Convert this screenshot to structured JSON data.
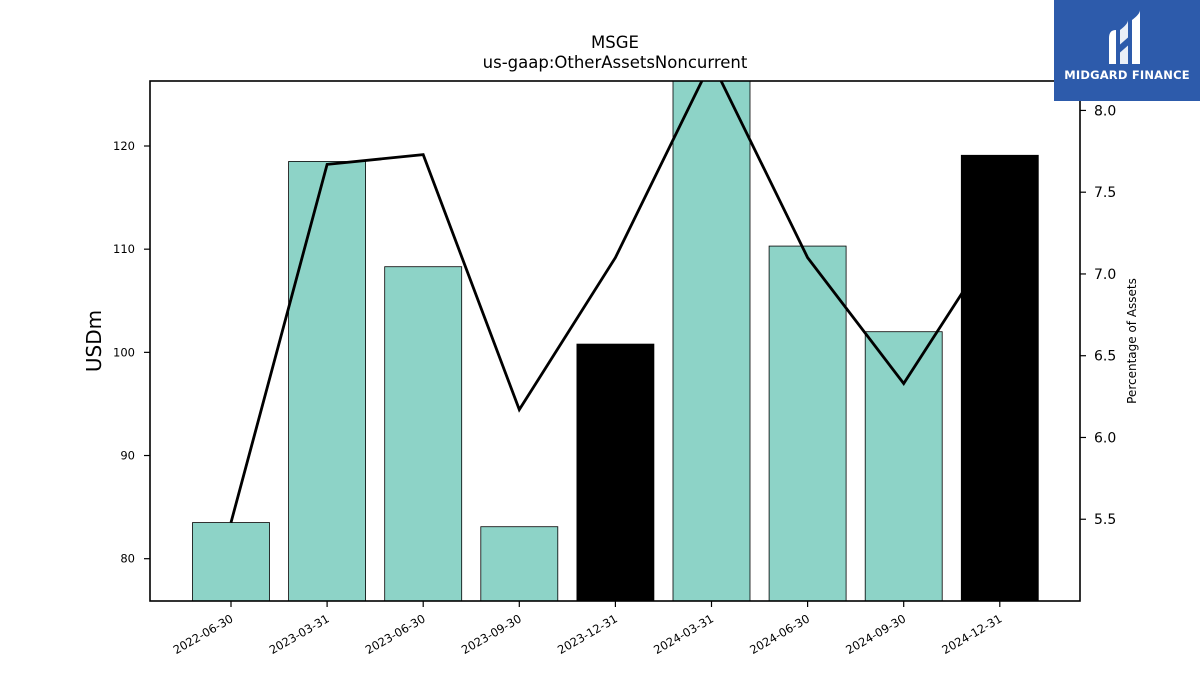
{
  "chart_data": {
    "type": "bar",
    "title": "MSGE",
    "subtitle": "us-gaap:OtherAssetsNoncurrent",
    "ylabel": "USDm",
    "y2label": "Percentage of Assets",
    "categories": [
      "2022-06-30",
      "2023-03-31",
      "2023-06-30",
      "2023-09-30",
      "2023-12-31",
      "2024-03-31",
      "2024-06-30",
      "2024-09-30",
      "2024-12-31"
    ],
    "series": [
      {
        "values": [
          83.5,
          118.5,
          108.3,
          83.1,
          100.8,
          126.5,
          110.3,
          102.0,
          119.1
        ],
        "colors": [
          "#8dd3c7",
          "#8dd3c7",
          "#8dd3c7",
          "#8dd3c7",
          "#000000",
          "#8dd3c7",
          "#8dd3c7",
          "#8dd3c7",
          "#000000"
        ],
        "axis": "left"
      },
      {
        "values": [
          5.48,
          7.67,
          7.73,
          6.17,
          7.1,
          8.3,
          7.1,
          6.33,
          7.24
        ],
        "color": "#000000",
        "axis": "right",
        "type": "line"
      }
    ],
    "ylim": [
      75.9,
      126.3
    ],
    "y2lim": [
      5.0,
      8.18
    ],
    "yticks": [
      80,
      90,
      100,
      110,
      120
    ],
    "y2ticks": [
      "5.5",
      "6.0",
      "6.5",
      "7.0",
      "7.5",
      "8.0"
    ],
    "grid": false,
    "legend": "none"
  },
  "logo": {
    "text": "MIDGARD FINANCE",
    "background": "#2d5bab"
  }
}
